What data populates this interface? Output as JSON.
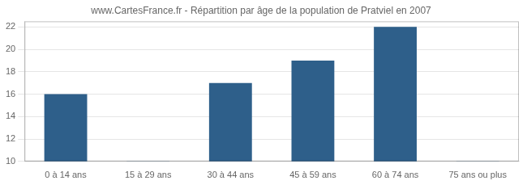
{
  "chart_data": {
    "type": "bar",
    "title": "www.CartesFrance.fr - Répartition par âge de la population de Pratviel en 2007",
    "categories": [
      "0 à 14 ans",
      "15 à 29 ans",
      "30 à 44 ans",
      "45 à 59 ans",
      "60 à 74 ans",
      "75 ans ou plus"
    ],
    "values": [
      16,
      10,
      17,
      19,
      22,
      10
    ],
    "color": "#2e5f8a",
    "ylim": [
      10,
      22.5
    ],
    "yticks": [
      10,
      12,
      14,
      16,
      18,
      20,
      22
    ],
    "grid": true
  }
}
